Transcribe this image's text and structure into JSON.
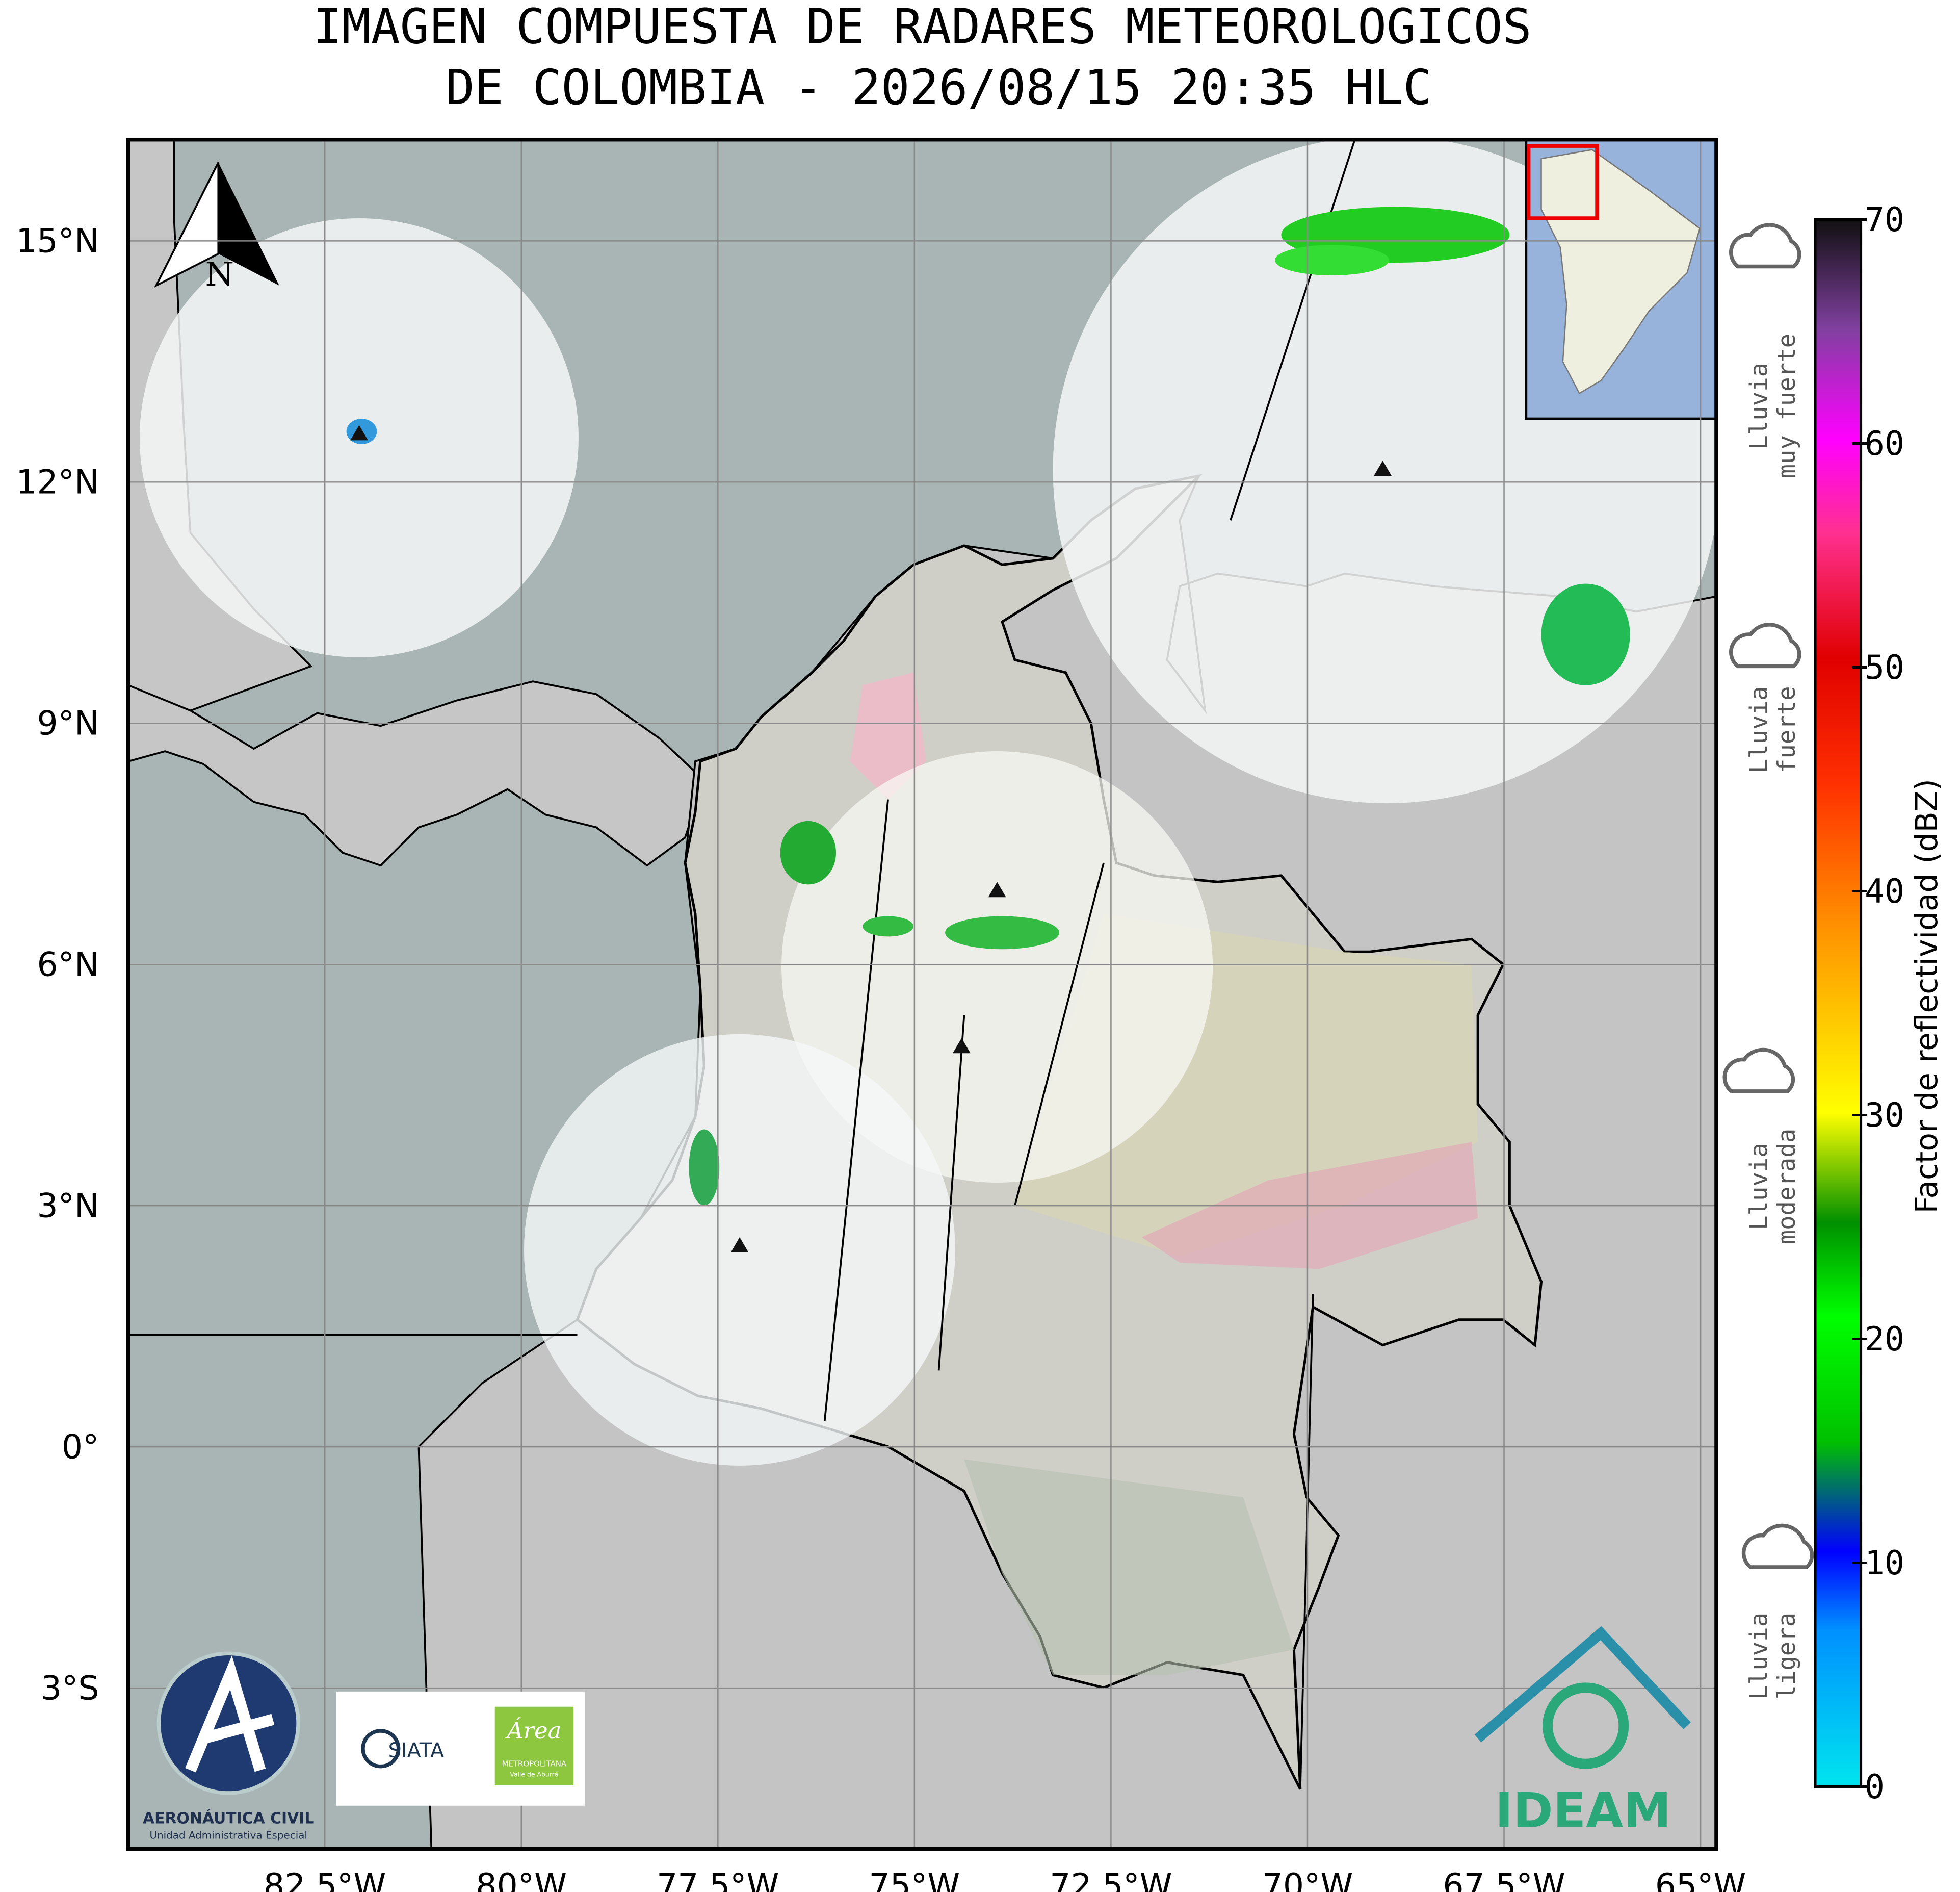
{
  "title": [
    "IMAGEN COMPUESTA DE RADARES METEOROLOGICOS",
    "DE COLOMBIA - 2026/08/15 20:35 HLC"
  ],
  "map": {
    "xlim": [
      -85,
      -64.8
    ],
    "ylim": [
      -5,
      16.26
    ],
    "xticks": [
      {
        "value": -82.5,
        "label": "82.5°W"
      },
      {
        "value": -80,
        "label": "80°W"
      },
      {
        "value": -77.5,
        "label": "77.5°W"
      },
      {
        "value": -75,
        "label": "75°W"
      },
      {
        "value": -72.5,
        "label": "72.5°W"
      },
      {
        "value": -70,
        "label": "70°W"
      },
      {
        "value": -67.5,
        "label": "67.5°W"
      },
      {
        "value": -65,
        "label": "65°W"
      }
    ],
    "yticks": [
      {
        "value": 15,
        "label": "15°N"
      },
      {
        "value": 12,
        "label": "12°N"
      },
      {
        "value": 9,
        "label": "9°N"
      },
      {
        "value": 6,
        "label": "6°N"
      },
      {
        "value": 3,
        "label": "3°N"
      },
      {
        "value": 0,
        "label": "0°"
      },
      {
        "value": -3,
        "label": "3°S"
      }
    ],
    "north": "N"
  },
  "colorbar": {
    "label": "Factor de reflectividad (dBZ)",
    "lim": [
      0,
      70
    ],
    "ticks": [
      0,
      10,
      20,
      30,
      40,
      50,
      60,
      70
    ]
  },
  "rain_levels": [
    [
      "Lluvia",
      "muy fuerte"
    ],
    [
      "Lluvia",
      "fuerte"
    ],
    [
      "Lluvia",
      "moderada"
    ],
    [
      "Lluvia",
      "ligera"
    ]
  ],
  "logos": {
    "aerocivil": [
      "AERONÁUTICA CIVIL",
      "Unidad Administrativa Especial"
    ],
    "siata": "SIATA",
    "area": [
      "Área",
      "METROPOLITANA",
      "Valle de Aburrá"
    ],
    "ideam": "IDEAM"
  }
}
